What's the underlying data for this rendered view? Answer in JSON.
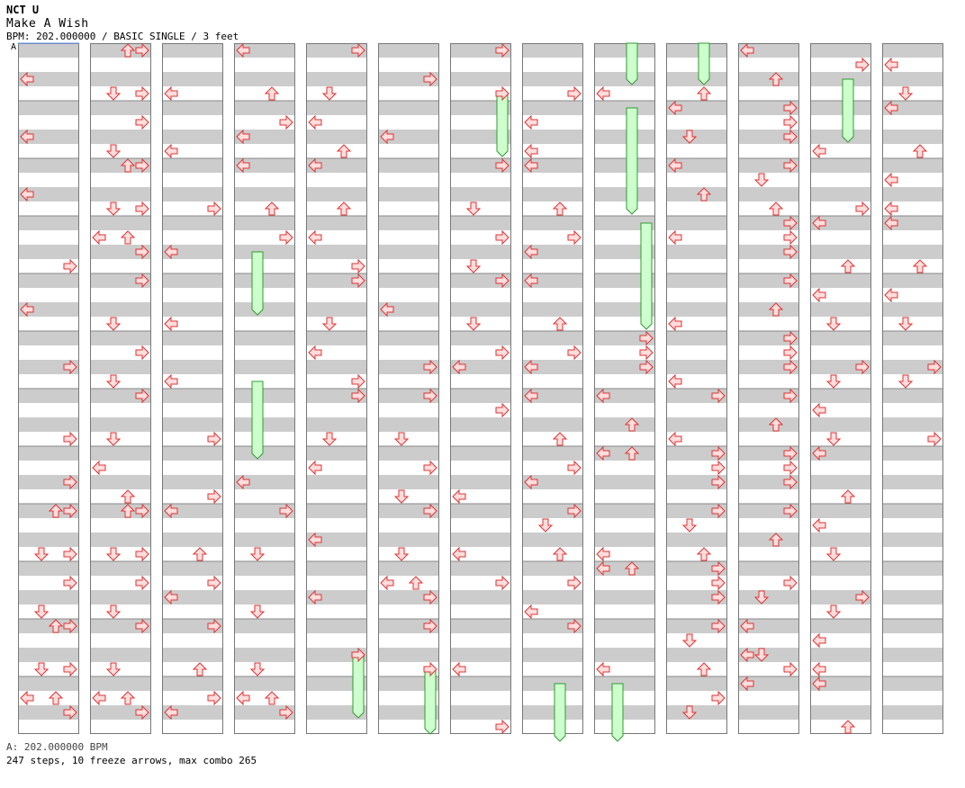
{
  "header": {
    "artist": "NCT U",
    "title": "Make A Wish",
    "chart_info": "BPM: 202.000000 / BASIC SINGLE / 3 feet"
  },
  "bpm_marker": "A",
  "footer": {
    "bpm_line": "A: 202.000000 BPM",
    "stats": "247 steps, 10 freeze arrows, max combo 265"
  },
  "colors": {
    "stripe": "#cccccc",
    "arrow_fill": "#ffdddd",
    "arrow_stroke": "#dd3333",
    "freeze_fill": "#ccffcc",
    "freeze_stroke": "#339933",
    "column_border": "#777777",
    "bpm_line": "#6699ff"
  },
  "chart_data": {
    "type": "step-chart",
    "mode": "BASIC SINGLE",
    "difficulty_feet": 3,
    "bpm": 202.0,
    "panels": [
      "left",
      "down",
      "up",
      "right"
    ],
    "columns": 13,
    "measures_per_column": 4,
    "steps_total": 247,
    "freeze_arrows": 10,
    "max_combo": 265
  }
}
